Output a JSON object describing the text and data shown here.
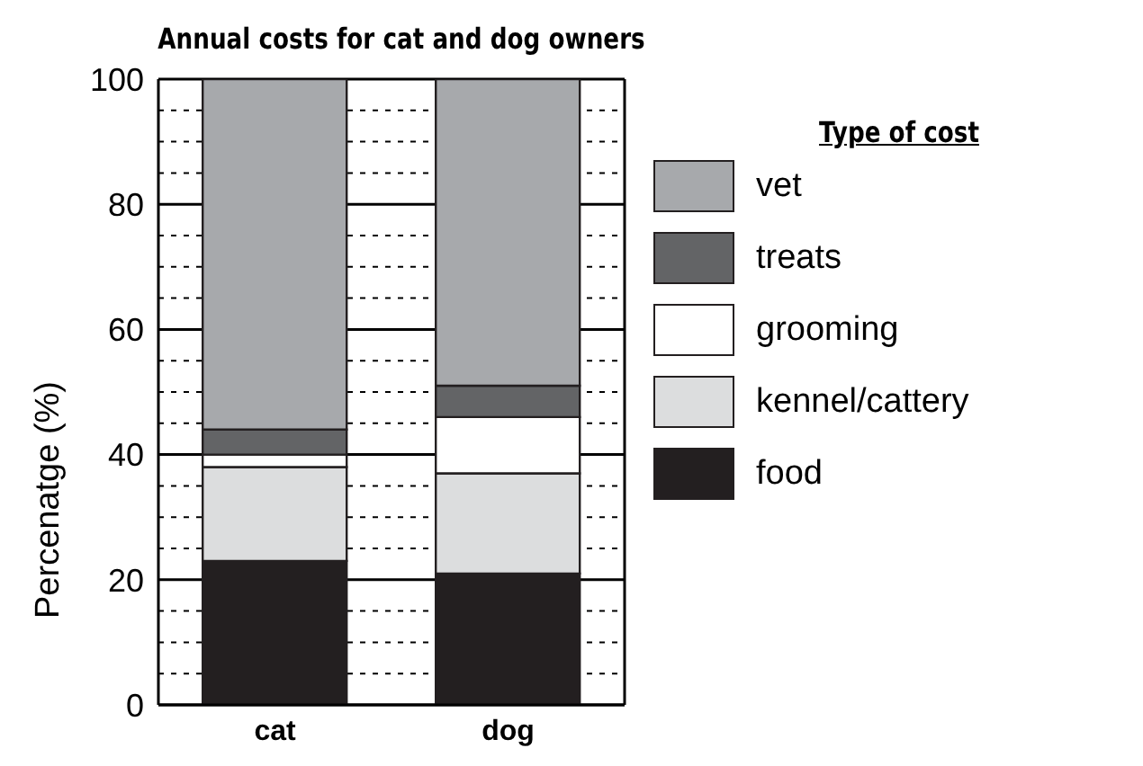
{
  "chart_data": {
    "type": "bar",
    "title": "Annual costs for cat and dog owners",
    "ylabel": "Percenatge (%)",
    "legend_title": "Type of cost",
    "categories": [
      "cat",
      "dog"
    ],
    "stacked": true,
    "series": [
      {
        "name": "food",
        "color": "#231f20",
        "values": [
          23,
          21
        ]
      },
      {
        "name": "kennel/cattery",
        "color": "#dcddde",
        "values": [
          15,
          16
        ]
      },
      {
        "name": "grooming",
        "color": "#ffffff",
        "values": [
          2,
          9
        ]
      },
      {
        "name": "treats",
        "color": "#636466",
        "values": [
          4,
          5
        ]
      },
      {
        "name": "vet",
        "color": "#a7a9ac",
        "values": [
          56,
          49
        ]
      }
    ],
    "ylim": [
      0,
      100
    ],
    "yticks": [
      0,
      {
        "value": 5,
        "label": null
      },
      {
        "value": 10,
        "label": null
      },
      {
        "value": 15,
        "label": null
      },
      20,
      {
        "value": 25,
        "label": null
      },
      {
        "value": 30,
        "label": null
      },
      {
        "value": 35,
        "label": null
      },
      40,
      {
        "value": 45,
        "label": null
      },
      {
        "value": 50,
        "label": null
      },
      {
        "value": 55,
        "label": null
      },
      60,
      {
        "value": 65,
        "label": null
      },
      {
        "value": 70,
        "label": null
      },
      {
        "value": 75,
        "label": null
      },
      80,
      {
        "value": 85,
        "label": null
      },
      {
        "value": 90,
        "label": null
      },
      {
        "value": 95,
        "label": null
      },
      100
    ],
    "grid": true,
    "legend": "right"
  }
}
